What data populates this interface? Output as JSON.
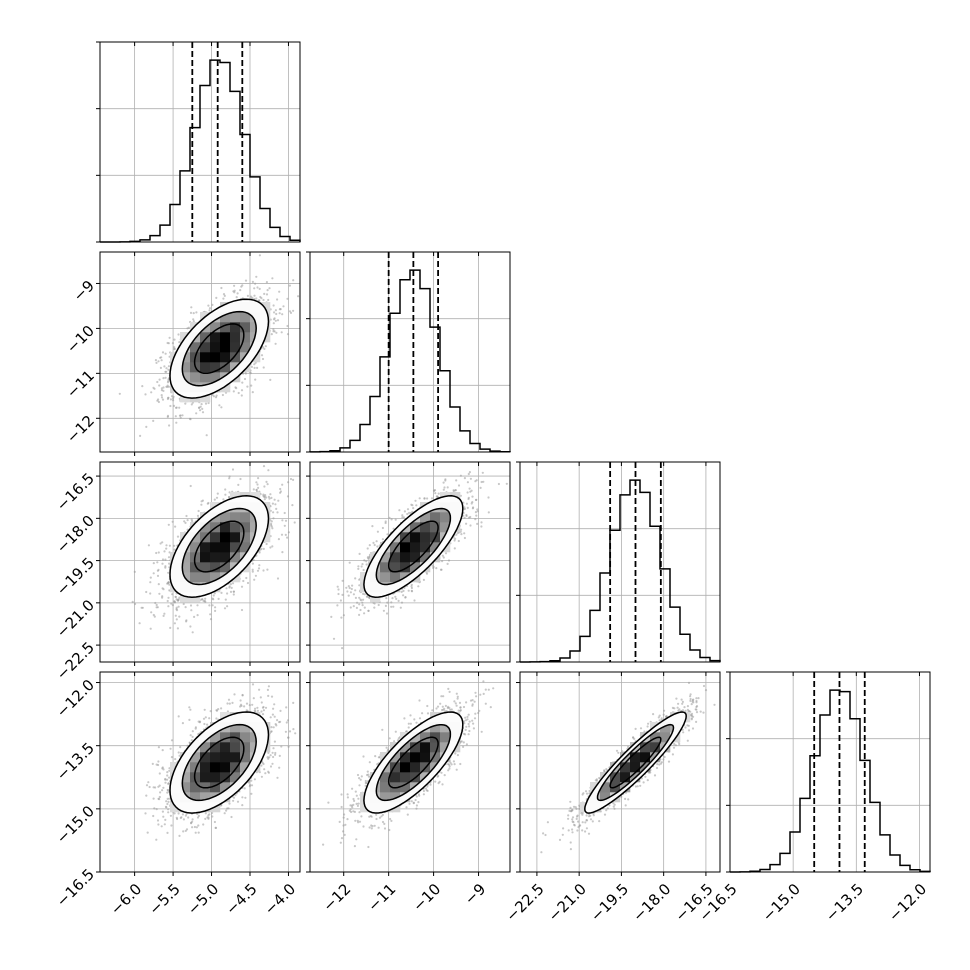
{
  "chart_data": {
    "type": "corner",
    "params": [
      {
        "mean": -4.9,
        "std": 0.32,
        "quantiles": [
          -5.25,
          -4.92,
          -4.6
        ],
        "range": [
          -6.45,
          -3.85
        ],
        "ticks": [
          -6.0,
          -5.5,
          -5.0,
          -4.5,
          -4.0
        ],
        "tick_labels": [
          "−6.0",
          "−5.5",
          "−5.0",
          "−4.5",
          "−4.0"
        ]
      },
      {
        "mean": -10.45,
        "std": 0.55,
        "quantiles": [
          -11.0,
          -10.45,
          -9.9
        ],
        "range": [
          -12.75,
          -8.3
        ],
        "ticks": [
          -12,
          -11,
          -10,
          -9
        ],
        "tick_labels": [
          "−12",
          "−11",
          "−10",
          "−9"
        ]
      },
      {
        "mean": -19.0,
        "std": 0.9,
        "quantiles": [
          -19.9,
          -19.0,
          -18.1
        ],
        "range": [
          -23.1,
          -16.0
        ],
        "ticks": [
          -22.5,
          -21.0,
          -19.5,
          -18.0,
          -16.5
        ],
        "tick_labels": [
          "−22.5",
          "−21.0",
          "−19.5",
          "−18.0",
          "−16.5"
        ]
      },
      {
        "mean": -13.9,
        "std": 0.6,
        "quantiles": [
          -14.5,
          -13.9,
          -13.3
        ],
        "range": [
          -16.5,
          -11.75
        ],
        "ticks": [
          -16.5,
          -15.0,
          -13.5,
          -12.0
        ],
        "tick_labels": [
          "−16.5",
          "−15.0",
          "−13.5",
          "−12.0"
        ]
      }
    ],
    "hist_bins": 20,
    "grid": true,
    "correlations": {
      "1-0": 0.55,
      "2-0": 0.55,
      "3-0": 0.55,
      "2-1": 0.75,
      "3-1": 0.75,
      "3-2": 0.92
    },
    "contour_levels_sigma": [
      0.5,
      1.0,
      1.5,
      2.0
    ],
    "colors": {
      "line": "#000000",
      "points": "#9a9a9a",
      "grid": "#b0b0b0"
    }
  }
}
